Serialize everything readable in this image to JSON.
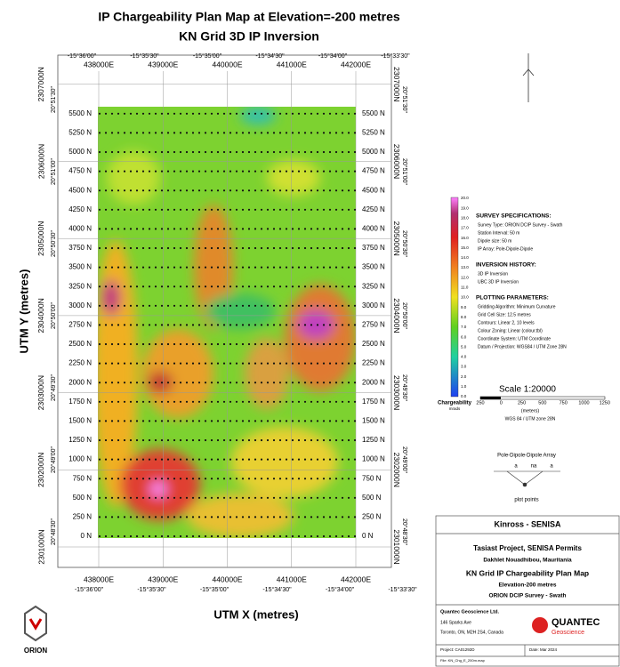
{
  "header": {
    "title": "IP Chargeability Plan Map at Elevation=-200 metres",
    "subtitle": "KN Grid 3D IP Inversion"
  },
  "axes": {
    "x_label": "UTM X (metres)",
    "y_label": "UTM Y (metres)",
    "eastings": [
      "438000E",
      "439000E",
      "440000E",
      "441000E",
      "442000E"
    ],
    "northings": [
      "2301000N",
      "2302000N",
      "2303000N",
      "2304000N",
      "2305000N",
      "2306000N",
      "2307000N"
    ],
    "longitudes": [
      "-15°36'00\"",
      "-15°35'30\"",
      "-15°35'00\"",
      "-15°34'30\"",
      "-15°34'00\"",
      "-15°33'30\""
    ],
    "latitudes": [
      "20°48'30\"",
      "20°49'00\"",
      "20°49'30\"",
      "20°50'00\"",
      "20°50'30\"",
      "20°51'00\"",
      "20°51'30\""
    ],
    "lines": [
      "0 N",
      "250 N",
      "500 N",
      "750 N",
      "1000 N",
      "1250 N",
      "1500 N",
      "1750 N",
      "2000 N",
      "2250 N",
      "2500 N",
      "2750 N",
      "3000 N",
      "3250 N",
      "3500 N",
      "3750 N",
      "4000 N",
      "4250 N",
      "4500 N",
      "4750 N",
      "5000 N",
      "5250 N",
      "5500 N"
    ]
  },
  "legend": {
    "values": [
      "20.0",
      "19.0",
      "18.0",
      "17.0",
      "16.0",
      "15.0",
      "14.0",
      "13.0",
      "12.0",
      "11.0",
      "10.0",
      "9.0",
      "8.0",
      "7.0",
      "6.0",
      "5.0",
      "4.0",
      "3.0",
      "2.0",
      "1.0",
      "0.0"
    ],
    "title": "Chargeability",
    "unit": "mrads"
  },
  "specs": [
    {
      "heading": "SURVEY SPECIFICATIONS:",
      "items": [
        "Survey Type: ORION DCIP Survey - Swath",
        "Station Interval: 50 m",
        "Dipole size: 50 m",
        "IP Array: Pole-Dipole-Dipole"
      ]
    },
    {
      "heading": "INVERSION HISTORY:",
      "items": [
        "3D IP Inversion",
        "UBC 3D IP Inversion"
      ]
    },
    {
      "heading": "PLOTTING PARAMETERS:",
      "items": [
        "Gridding Algorithm: Minimum Curvature",
        "Grid Cell Size: 12.5 metres",
        "Contours: Linear 2, 10 levels",
        "Colour Zoning: Linear (colour.tbl)",
        "Coordinate System: UTM Coordinate",
        "Datum / Projection: WGS84 / UTM Zone 28N"
      ]
    }
  ],
  "scale": {
    "title": "Scale 1:20000",
    "ticks": [
      "250",
      "0",
      "250",
      "500",
      "750",
      "1000",
      "1250"
    ],
    "unit": "(meters)",
    "datum": "WGS 84 / UTM zone 28N"
  },
  "array": {
    "title": "Pole-Dipole-Dipole Array",
    "labels": [
      "a",
      "na",
      "a"
    ],
    "caption": "plot points"
  },
  "title_block": {
    "client": "Kinross - SENISA",
    "project": "Tasiast Project, SENISA Permits",
    "location": "Dakhlet Nouadhibou, Mauritania",
    "map": "KN Grid IP Chargeability Plan Map",
    "elevation": "Elevation-200 metres",
    "survey": "ORION DCIP Survey - Swath",
    "company": "Quantec Geoscience Ltd.",
    "address1": "146 Sparks Ave",
    "address2": "Toronto, ON, M2H 2S4, Canada",
    "project_no": "Project: CA01292D",
    "date": "Date: Mar 2024",
    "file": "File: KN_Chg_E_200m.map",
    "logo": "QUANTEC",
    "logo_sub": "Geoscience",
    "orion": "ORION"
  }
}
